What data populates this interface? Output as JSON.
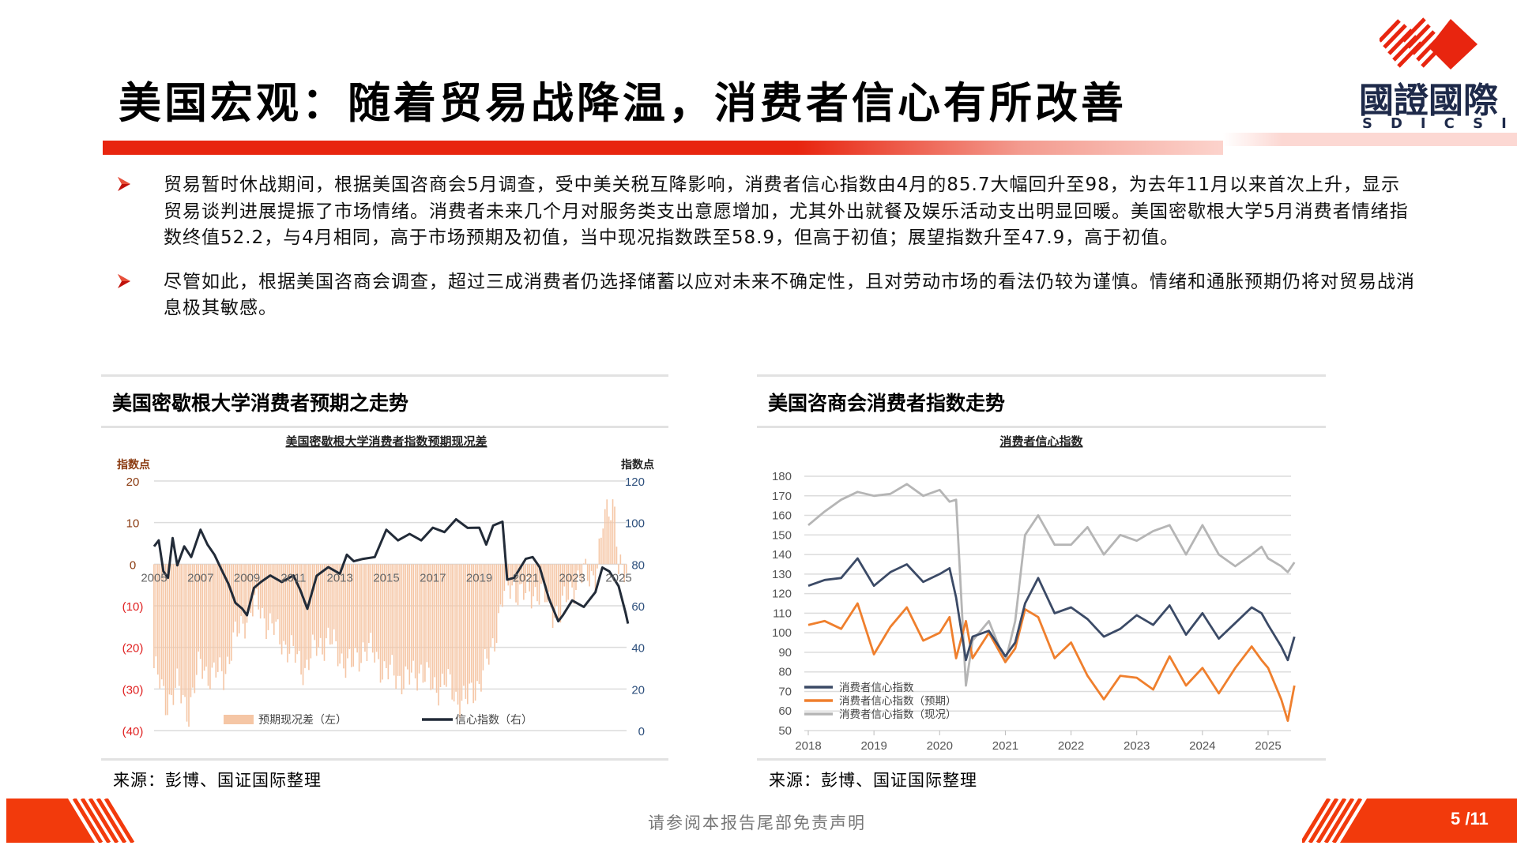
{
  "header": {
    "title": "美国宏观：随着贸易战降温，消费者信心有所改善",
    "logo": {
      "cn": "國證國際",
      "en": "SDICSI",
      "icon": "sdicsi-logo-icon",
      "brand_color": "#e8250f",
      "text_color": "#1e2a4a"
    }
  },
  "bullets": [
    {
      "icon": "arrow-bullet-icon",
      "text": "贸易暂时休战期间，根据美国咨商会5月调查，受中美关税互降影响，消费者信心指数由4月的85.7大幅回升至98，为去年11月以来首次上升，显示贸易谈判进展提振了市场情绪。消费者未来几个月对服务类支出意愿增加，尤其外出就餐及娱乐活动支出明显回暖。美国密歇根大学5月消费者情绪指数终值52.2，与4月相同，高于市场预期及初值，当中现况指数跌至58.9，但高于初值；展望指数升至47.9，高于初值。"
    },
    {
      "icon": "arrow-bullet-icon",
      "text": "尽管如此，根据美国咨商会调查，超过三成消费者仍选择储蓄以应对未来不确定性，且对劳动市场的看法仍较为谨慎。情绪和通胀预期仍将对贸易战消息极其敏感。"
    }
  ],
  "panels": {
    "left": {
      "heading": "美国密歇根大学消费者预期之走势",
      "source": "来源：彭博、国证国际整理"
    },
    "right": {
      "heading": "美国咨商会消费者指数走势",
      "source": "来源：彭博、国证国际整理"
    }
  },
  "footer": {
    "disclaimer": "请参阅本报告尾部免责声明",
    "page": "5 /11"
  },
  "chart_data": [
    {
      "type": "bar+line",
      "title": "美国密歇根大学消费者指数预期现况差",
      "y_left_label": "指数点",
      "y_right_label": "指数点",
      "y_left_ticks": [
        "20",
        "10",
        "0",
        "(10)",
        "(20)",
        "(30)",
        "(40)"
      ],
      "y_left_range": [
        -40,
        20
      ],
      "y_right_ticks": [
        "120",
        "100",
        "80",
        "60",
        "40",
        "20",
        "0"
      ],
      "y_right_range": [
        0,
        120
      ],
      "x_ticks": [
        "2005",
        "2007",
        "2009",
        "2011",
        "2013",
        "2015",
        "2017",
        "2019",
        "2021",
        "2023",
        "2025"
      ],
      "legend": [
        "预期现况差（左）",
        "信心指数（右）"
      ],
      "legend_position": "bottom",
      "colors": {
        "bars": "#f5c6a5",
        "line": "#222b38",
        "left_axis": "#c0392b",
        "right_axis": "#2d4f7c"
      },
      "series": [
        {
          "name": "预期现况差（左）",
          "type": "bar",
          "axis": "left",
          "x": [
            2005.0,
            2005.5,
            2006.0,
            2006.5,
            2007.0,
            2007.5,
            2008.0,
            2008.5,
            2009.0,
            2009.5,
            2010.0,
            2010.5,
            2011.0,
            2011.5,
            2012.0,
            2012.5,
            2013.0,
            2013.5,
            2014.0,
            2014.5,
            2015.0,
            2015.5,
            2016.0,
            2016.5,
            2017.0,
            2017.5,
            2018.0,
            2018.5,
            2019.0,
            2019.5,
            2020.0,
            2020.5,
            2021.0,
            2021.5,
            2022.0,
            2022.5,
            2023.0,
            2023.5,
            2024.0,
            2024.3,
            2024.6,
            2024.8,
            2025.0,
            2025.3
          ],
          "values": [
            -25,
            -33,
            -30,
            -35,
            -24,
            -27,
            -26,
            -18,
            -12,
            -10,
            -15,
            -18,
            -22,
            -25,
            -20,
            -18,
            -22,
            -25,
            -20,
            -22,
            -26,
            -27,
            -28,
            -25,
            -30,
            -28,
            -32,
            -33,
            -28,
            -22,
            -8,
            -5,
            -8,
            -6,
            -10,
            -12,
            -5,
            -3,
            -2,
            6,
            11,
            13,
            -2,
            -3
          ]
        },
        {
          "name": "信心指数（右）",
          "type": "line",
          "axis": "right",
          "x": [
            2005.0,
            2005.2,
            2005.4,
            2005.6,
            2005.8,
            2006.0,
            2006.3,
            2006.6,
            2007.0,
            2007.3,
            2007.6,
            2007.9,
            2008.2,
            2008.5,
            2008.8,
            2009.0,
            2009.3,
            2009.6,
            2010.0,
            2010.5,
            2011.0,
            2011.3,
            2011.6,
            2012.0,
            2012.5,
            2013.0,
            2013.3,
            2013.6,
            2014.0,
            2014.5,
            2015.0,
            2015.5,
            2016.0,
            2016.5,
            2017.0,
            2017.5,
            2018.0,
            2018.5,
            2019.0,
            2019.3,
            2019.6,
            2020.0,
            2020.2,
            2020.5,
            2021.0,
            2021.3,
            2021.6,
            2022.0,
            2022.4,
            2022.6,
            2023.0,
            2023.5,
            2024.0,
            2024.3,
            2024.6,
            2025.0,
            2025.3,
            2025.4
          ],
          "values": [
            88,
            92,
            76,
            74,
            92,
            80,
            88,
            84,
            96,
            90,
            84,
            78,
            70,
            62,
            58,
            56,
            68,
            72,
            74,
            72,
            74,
            68,
            58,
            75,
            78,
            76,
            84,
            82,
            82,
            84,
            96,
            92,
            94,
            92,
            97,
            96,
            101,
            98,
            97,
            90,
            98,
            101,
            72,
            74,
            82,
            84,
            78,
            64,
            52,
            56,
            62,
            60,
            66,
            79,
            76,
            70,
            56,
            52
          ]
        }
      ]
    },
    {
      "type": "line",
      "title": "消费者信心指数",
      "y_ticks": [
        180,
        170,
        160,
        150,
        140,
        130,
        120,
        110,
        100,
        90,
        80,
        70,
        60,
        50
      ],
      "ylim": [
        50,
        180
      ],
      "x_ticks": [
        "2018",
        "2019",
        "2020",
        "2021",
        "2022",
        "2023",
        "2024",
        "2025"
      ],
      "legend": [
        "消费者信心指数",
        "消费者信心指数（预期）",
        "消费者信心指数（现况）"
      ],
      "legend_position": "lower-left inside",
      "grid": true,
      "colors": {
        "total": "#3b4a66",
        "expectations": "#ef7f2d",
        "present": "#b5b5b5"
      },
      "series": [
        {
          "name": "消费者信心指数",
          "x": [
            2018.0,
            2018.25,
            2018.5,
            2018.75,
            2019.0,
            2019.25,
            2019.5,
            2019.75,
            2020.0,
            2020.15,
            2020.25,
            2020.4,
            2020.5,
            2020.75,
            2021.0,
            2021.15,
            2021.3,
            2021.5,
            2021.75,
            2022.0,
            2022.25,
            2022.5,
            2022.75,
            2023.0,
            2023.25,
            2023.5,
            2023.75,
            2024.0,
            2024.25,
            2024.5,
            2024.75,
            2024.9,
            2025.0,
            2025.2,
            2025.3,
            2025.4
          ],
          "values": [
            124,
            127,
            128,
            138,
            124,
            131,
            135,
            126,
            130,
            133,
            118,
            86,
            98,
            101,
            88,
            95,
            115,
            128,
            110,
            113,
            107,
            98,
            102,
            109,
            104,
            114,
            99,
            110,
            97,
            105,
            113,
            110,
            104,
            93,
            86,
            98
          ]
        },
        {
          "name": "消费者信心指数（预期）",
          "x": [
            2018.0,
            2018.25,
            2018.5,
            2018.75,
            2019.0,
            2019.25,
            2019.5,
            2019.75,
            2020.0,
            2020.15,
            2020.25,
            2020.4,
            2020.5,
            2020.75,
            2021.0,
            2021.15,
            2021.3,
            2021.5,
            2021.75,
            2022.0,
            2022.25,
            2022.5,
            2022.75,
            2023.0,
            2023.25,
            2023.5,
            2023.75,
            2024.0,
            2024.25,
            2024.5,
            2024.75,
            2024.9,
            2025.0,
            2025.2,
            2025.3,
            2025.4
          ],
          "values": [
            104,
            106,
            102,
            115,
            89,
            103,
            113,
            96,
            100,
            108,
            87,
            106,
            87,
            100,
            85,
            92,
            112,
            108,
            87,
            95,
            78,
            66,
            78,
            77,
            71,
            88,
            73,
            82,
            69,
            82,
            93,
            86,
            82,
            66,
            55,
            73
          ]
        },
        {
          "name": "消费者信心指数（现况）",
          "x": [
            2018.0,
            2018.25,
            2018.5,
            2018.75,
            2019.0,
            2019.25,
            2019.5,
            2019.75,
            2020.0,
            2020.15,
            2020.25,
            2020.4,
            2020.5,
            2020.75,
            2021.0,
            2021.15,
            2021.3,
            2021.5,
            2021.75,
            2022.0,
            2022.25,
            2022.5,
            2022.75,
            2023.0,
            2023.25,
            2023.5,
            2023.75,
            2024.0,
            2024.25,
            2024.5,
            2024.75,
            2024.9,
            2025.0,
            2025.2,
            2025.3,
            2025.4
          ],
          "values": [
            155,
            162,
            168,
            172,
            170,
            171,
            176,
            170,
            173,
            167,
            168,
            73,
            96,
            106,
            85,
            106,
            150,
            160,
            145,
            145,
            154,
            140,
            150,
            147,
            152,
            155,
            140,
            155,
            140,
            134,
            140,
            144,
            138,
            134,
            131,
            136
          ]
        }
      ]
    }
  ]
}
